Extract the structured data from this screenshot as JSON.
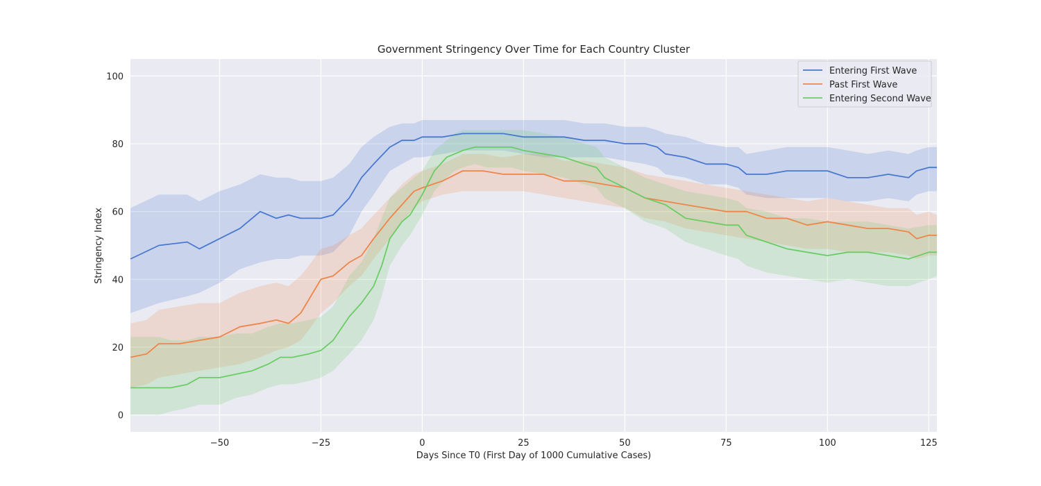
{
  "chart_data": {
    "type": "line",
    "title": "Government Stringency Over Time for Each Country Cluster",
    "xlabel": "Days Since T0 (First Day of 1000 Cumulative Cases)",
    "ylabel": "Stringency Index",
    "xlim": [
      -72,
      127
    ],
    "ylim": [
      -5,
      105
    ],
    "xticks": [
      -50,
      -25,
      0,
      25,
      50,
      75,
      100,
      125
    ],
    "xtick_labels": [
      "−50",
      "−25",
      "0",
      "25",
      "50",
      "75",
      "100",
      "125"
    ],
    "yticks": [
      0,
      20,
      40,
      60,
      80,
      100
    ],
    "ytick_labels": [
      "0",
      "20",
      "40",
      "60",
      "80",
      "100"
    ],
    "grid": true,
    "legend_position": "top-right",
    "bands": "shaded confidence interval around each line",
    "series": [
      {
        "name": "Entering First Wave",
        "color": "#4878d0",
        "x": [
          -72,
          -65,
          -58,
          -55,
          -50,
          -45,
          -40,
          -36,
          -33,
          -30,
          -25,
          -22,
          -18,
          -15,
          -12,
          -8,
          -5,
          -2,
          0,
          5,
          10,
          15,
          20,
          25,
          30,
          35,
          40,
          45,
          50,
          55,
          58,
          60,
          65,
          70,
          75,
          78,
          80,
          85,
          90,
          95,
          100,
          105,
          110,
          115,
          120,
          122,
          125,
          127
        ],
        "values": [
          46,
          50,
          51,
          49,
          52,
          55,
          60,
          58,
          59,
          58,
          58,
          59,
          64,
          70,
          74,
          79,
          81,
          81,
          82,
          82,
          83,
          83,
          83,
          82,
          82,
          82,
          81,
          81,
          80,
          80,
          79,
          77,
          76,
          74,
          74,
          73,
          71,
          71,
          72,
          72,
          72,
          70,
          70,
          71,
          70,
          72,
          73,
          73
        ],
        "lower": [
          30,
          33,
          35,
          36,
          39,
          43,
          45,
          46,
          46,
          47,
          47,
          48,
          53,
          60,
          65,
          72,
          74,
          76,
          76,
          77,
          78,
          78,
          78,
          77,
          76,
          76,
          76,
          76,
          75,
          74,
          73,
          71,
          70,
          68,
          68,
          67,
          65,
          64,
          64,
          64,
          64,
          63,
          63,
          64,
          63,
          65,
          66,
          66
        ],
        "upper": [
          61,
          65,
          65,
          63,
          66,
          68,
          71,
          70,
          70,
          69,
          69,
          70,
          74,
          79,
          82,
          85,
          86,
          86,
          87,
          87,
          87,
          87,
          87,
          87,
          87,
          87,
          86,
          86,
          85,
          85,
          84,
          83,
          82,
          80,
          79,
          79,
          77,
          78,
          79,
          79,
          79,
          78,
          77,
          78,
          77,
          78,
          79,
          79
        ]
      },
      {
        "name": "Past First Wave",
        "color": "#ee854a",
        "x": [
          -72,
          -68,
          -65,
          -60,
          -55,
          -50,
          -45,
          -40,
          -36,
          -33,
          -30,
          -28,
          -25,
          -22,
          -18,
          -15,
          -12,
          -8,
          -5,
          -2,
          0,
          5,
          10,
          15,
          20,
          25,
          30,
          35,
          40,
          45,
          50,
          55,
          60,
          65,
          70,
          75,
          80,
          85,
          90,
          95,
          100,
          105,
          110,
          115,
          120,
          122,
          125,
          127
        ],
        "values": [
          17,
          18,
          21,
          21,
          22,
          23,
          26,
          27,
          28,
          27,
          30,
          34,
          40,
          41,
          45,
          47,
          52,
          58,
          62,
          66,
          67,
          69,
          72,
          72,
          71,
          71,
          71,
          69,
          69,
          68,
          67,
          64,
          63,
          62,
          61,
          60,
          60,
          58,
          58,
          56,
          57,
          56,
          55,
          55,
          54,
          52,
          53,
          53
        ],
        "lower": [
          8,
          9,
          11,
          12,
          13,
          14,
          15,
          17,
          19,
          20,
          22,
          25,
          30,
          33,
          38,
          41,
          46,
          52,
          57,
          61,
          63,
          65,
          66,
          66,
          66,
          66,
          65,
          64,
          63,
          62,
          61,
          58,
          57,
          55,
          54,
          53,
          52,
          51,
          50,
          49,
          49,
          48,
          48,
          48,
          47,
          46,
          47,
          47
        ],
        "upper": [
          27,
          28,
          31,
          32,
          33,
          33,
          36,
          38,
          39,
          38,
          41,
          44,
          49,
          50,
          53,
          55,
          59,
          64,
          68,
          71,
          72,
          74,
          77,
          77,
          76,
          77,
          77,
          75,
          75,
          74,
          73,
          71,
          70,
          69,
          68,
          67,
          66,
          65,
          64,
          63,
          64,
          63,
          62,
          61,
          61,
          59,
          60,
          59
        ]
      },
      {
        "name": "Entering Second Wave",
        "color": "#6acc64",
        "x": [
          -72,
          -65,
          -62,
          -58,
          -55,
          -50,
          -46,
          -42,
          -38,
          -35,
          -32,
          -28,
          -25,
          -22,
          -18,
          -15,
          -12,
          -10,
          -8,
          -5,
          -3,
          0,
          3,
          6,
          8,
          10,
          13,
          16,
          20,
          22,
          25,
          30,
          35,
          40,
          43,
          45,
          50,
          55,
          60,
          65,
          70,
          75,
          78,
          80,
          85,
          90,
          95,
          100,
          105,
          110,
          115,
          120,
          125,
          127
        ],
        "values": [
          8,
          8,
          8,
          9,
          11,
          11,
          12,
          13,
          15,
          17,
          17,
          18,
          19,
          22,
          29,
          33,
          38,
          44,
          52,
          57,
          59,
          65,
          72,
          76,
          77,
          78,
          79,
          79,
          79,
          79,
          78,
          77,
          76,
          74,
          73,
          70,
          67,
          64,
          62,
          58,
          57,
          56,
          56,
          53,
          51,
          49,
          48,
          47,
          48,
          48,
          47,
          46,
          48,
          48
        ],
        "lower": [
          0,
          0,
          1,
          2,
          3,
          3,
          5,
          6,
          8,
          9,
          9,
          10,
          11,
          13,
          18,
          22,
          28,
          35,
          44,
          50,
          53,
          59,
          66,
          70,
          72,
          73,
          74,
          73,
          73,
          73,
          72,
          71,
          70,
          68,
          67,
          64,
          61,
          57,
          55,
          51,
          49,
          47,
          46,
          44,
          42,
          41,
          40,
          39,
          40,
          39,
          38,
          38,
          40,
          41
        ],
        "upper": [
          23,
          23,
          22,
          22,
          23,
          23,
          24,
          24,
          26,
          27,
          27,
          28,
          29,
          32,
          41,
          45,
          52,
          58,
          64,
          67,
          69,
          72,
          78,
          81,
          83,
          84,
          84,
          84,
          84,
          84,
          84,
          83,
          82,
          80,
          79,
          76,
          73,
          70,
          68,
          66,
          65,
          64,
          63,
          61,
          60,
          58,
          58,
          57,
          57,
          57,
          56,
          55,
          56,
          56
        ]
      }
    ]
  }
}
